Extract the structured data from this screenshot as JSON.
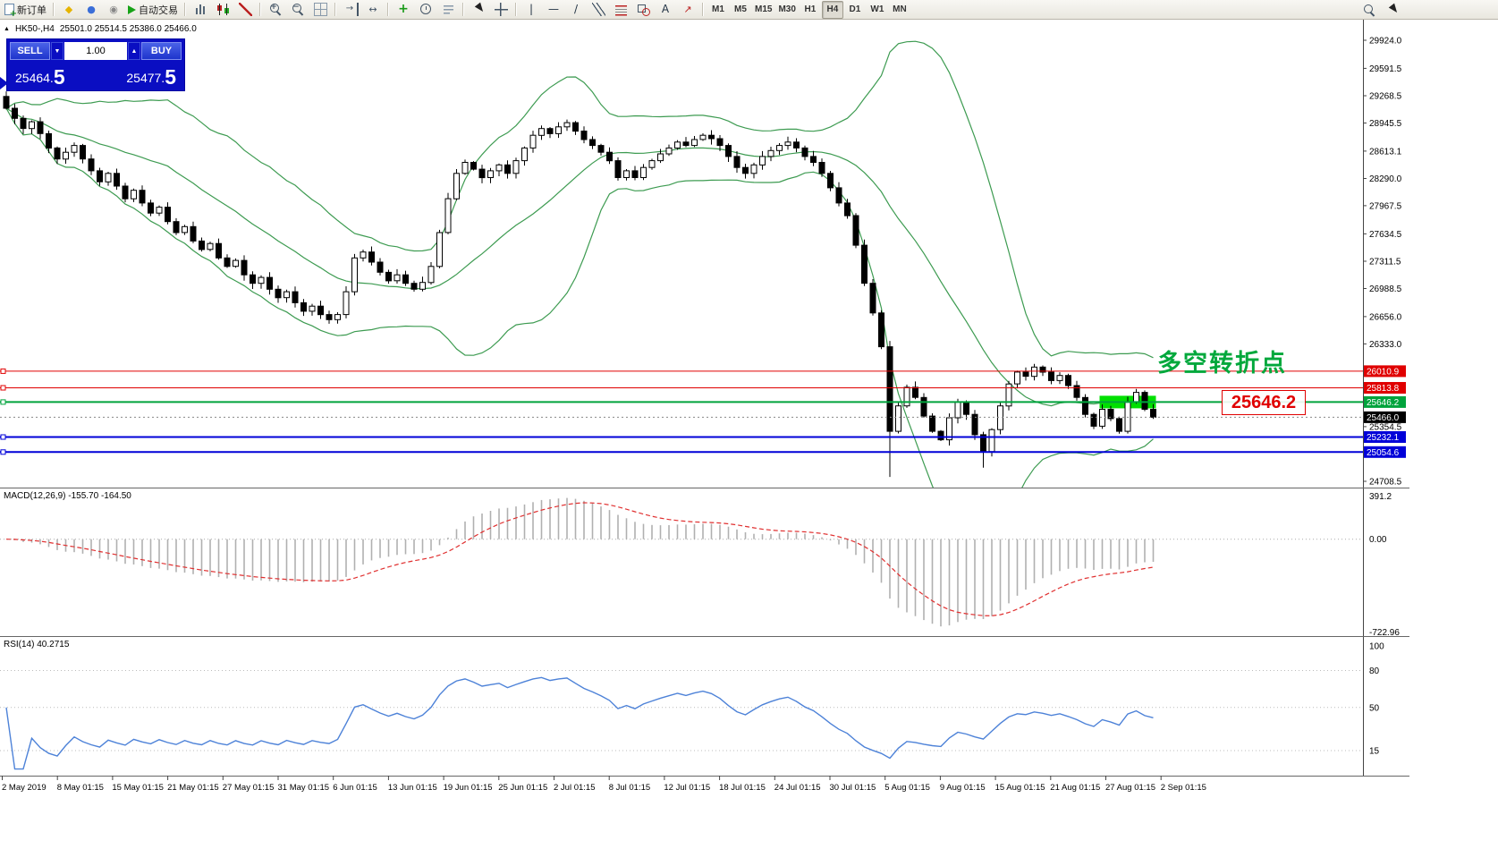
{
  "icons": {
    "pane_collapse": "▲",
    "spinner_down": "▼",
    "spinner_up": "▲"
  },
  "toolbar": {
    "groups": [
      {
        "items": [
          {
            "name": "new-order-button",
            "icon": "doc",
            "label": "新订单"
          }
        ]
      },
      {
        "items": [
          {
            "name": "mql5-button",
            "icon": "glyph",
            "glyph": "◆",
            "color": "#e6b400"
          },
          {
            "name": "profile-button",
            "icon": "glyph",
            "glyph": "●",
            "color": "#3a6ed8"
          },
          {
            "name": "community-button",
            "icon": "glyph",
            "glyph": "◉",
            "color": "#888888"
          },
          {
            "name": "algo-trading-button",
            "icon": "play",
            "label": "自动交易"
          }
        ]
      },
      {
        "items": [
          {
            "name": "bar-chart-button",
            "icon": "bars"
          },
          {
            "name": "candlestick-chart-button",
            "icon": "candles"
          },
          {
            "name": "line-chart-button",
            "icon": "linechart"
          }
        ]
      },
      {
        "items": [
          {
            "name": "zoom-in-button",
            "icon": "zoomin",
            "glyph": "+"
          },
          {
            "name": "zoom-out-button",
            "icon": "zoomout",
            "glyph": "−"
          },
          {
            "name": "tile-windows-button",
            "icon": "grid"
          }
        ]
      },
      {
        "items": [
          {
            "name": "auto-scroll-button",
            "icon": "as",
            "glyph": "→"
          },
          {
            "name": "chart-shift-button",
            "icon": "shift",
            "glyph": "↔"
          }
        ]
      },
      {
        "items": [
          {
            "name": "indicators-button",
            "icon": "indplus",
            "glyph": "+"
          },
          {
            "name": "periods-button",
            "icon": "clock"
          },
          {
            "name": "templates-button",
            "icon": "tpl"
          }
        ]
      },
      {
        "items": [
          {
            "name": "cursor-button",
            "icon": "cursor"
          },
          {
            "name": "crosshair-button",
            "icon": "crosshair"
          }
        ]
      },
      {
        "items": [
          {
            "name": "vertical-line-button",
            "icon": "vl",
            "glyph": "|"
          },
          {
            "name": "horizontal-line-button",
            "icon": "hl",
            "glyph": "—"
          },
          {
            "name": "trendline-button",
            "icon": "tl",
            "glyph": "/"
          },
          {
            "name": "equidistant-channel-button",
            "icon": "channel"
          },
          {
            "name": "fibonacci-button",
            "icon": "fibo"
          },
          {
            "name": "shapes-button",
            "icon": "shapes"
          },
          {
            "name": "text-label-button",
            "icon": "text",
            "glyph": "A"
          },
          {
            "name": "arrows-button",
            "icon": "arrowtool",
            "glyph": "↗"
          }
        ]
      },
      {
        "items": [
          {
            "name": "timeframe-m1-button",
            "label": "M1",
            "tf": true
          },
          {
            "name": "timeframe-m5-button",
            "label": "M5",
            "tf": true
          },
          {
            "name": "timeframe-m15-button",
            "label": "M15",
            "tf": true
          },
          {
            "name": "timeframe-m30-button",
            "label": "M30",
            "tf": true
          },
          {
            "name": "timeframe-h1-button",
            "label": "H1",
            "tf": true
          },
          {
            "name": "timeframe-h4-button",
            "label": "H4",
            "tf": true,
            "active": true
          },
          {
            "name": "timeframe-d1-button",
            "label": "D1",
            "tf": true
          },
          {
            "name": "timeframe-w1-button",
            "label": "W1",
            "tf": true
          },
          {
            "name": "timeframe-mn-button",
            "label": "MN",
            "tf": true
          }
        ]
      }
    ],
    "right_items": [
      {
        "name": "search-symbol-button",
        "icon": "magnifier"
      },
      {
        "name": "pointer-dropdown-button",
        "icon": "cursor"
      }
    ]
  },
  "chart_header": {
    "symbol_timeframe": "HK50-,H4",
    "ohlc": "25501.0 25514.5 25386.0 25466.0"
  },
  "order_panel": {
    "sell_label": "SELL",
    "buy_label": "BUY",
    "volume": "1.00",
    "sell_price_int": "25464.",
    "sell_price_frac": "5",
    "buy_price_int": "25477.",
    "buy_price_frac": "5"
  },
  "annotations": {
    "turning_point": "多空转折点",
    "price_callout": "25646.2"
  },
  "colors": {
    "accent_red": "#e00000",
    "accent_blue": "#0000d8",
    "accent_green": "#00a33c",
    "highlight_green": "#00e000",
    "band_green": "#3d9b51",
    "rsi_blue": "#4d82d8",
    "macd_signal_red": "#e03030",
    "macd_hist_gray": "#b0b0b0",
    "panel_blue": "#0a0ec2",
    "current_price_bg": "#000000"
  },
  "chart_data": {
    "type": "candlestick",
    "symbol": "HK50",
    "timeframe": "H4",
    "first_open": 29260,
    "closes": [
      29120,
      29000,
      28880,
      28960,
      28820,
      28650,
      28520,
      28600,
      28680,
      28520,
      28380,
      28250,
      28350,
      28200,
      28050,
      28150,
      28000,
      27880,
      27950,
      27780,
      27650,
      27720,
      27550,
      27450,
      27520,
      27350,
      27250,
      27320,
      27150,
      27050,
      27120,
      26980,
      26880,
      26950,
      26820,
      26720,
      26780,
      26680,
      26620,
      26680,
      26950,
      27350,
      27420,
      27300,
      27180,
      27080,
      27150,
      27050,
      26980,
      27060,
      27250,
      27650,
      28050,
      28350,
      28480,
      28400,
      28300,
      28380,
      28450,
      28350,
      28500,
      28650,
      28800,
      28880,
      28820,
      28900,
      28950,
      28850,
      28750,
      28680,
      28600,
      28500,
      28300,
      28380,
      28300,
      28420,
      28500,
      28580,
      28650,
      28720,
      28680,
      28750,
      28800,
      28760,
      28680,
      28550,
      28420,
      28350,
      28450,
      28550,
      28620,
      28680,
      28720,
      28650,
      28550,
      28480,
      28350,
      28180,
      28000,
      27850,
      27500,
      27050,
      26700,
      26300,
      25300,
      25600,
      25820,
      25700,
      25480,
      25300,
      25200,
      25460,
      25650,
      25500,
      25260,
      25060,
      25320,
      25600,
      25860,
      26000,
      25950,
      26060,
      26000,
      25900,
      25960,
      25840,
      25700,
      25500,
      25360,
      25560,
      25450,
      25300,
      25650,
      25760,
      25560,
      25466
    ],
    "wick_overrides": {
      "0": {
        "high": 29320
      },
      "104": {
        "low": 24760
      },
      "115": {
        "low": 24870
      }
    },
    "current_price": {
      "value": 25466.0,
      "label": "25466.0"
    },
    "levels": [
      {
        "price": 26010.9,
        "label": "26010.9",
        "color": "#e00000",
        "width": 1
      },
      {
        "price": 25813.8,
        "label": "25813.8",
        "color": "#e00000",
        "width": 1
      },
      {
        "price": 25646.2,
        "label": "25646.2",
        "color": "#00a33c",
        "width": 2
      },
      {
        "price": 25232.1,
        "label": "25232.1",
        "color": "#0000d8",
        "width": 2
      },
      {
        "price": 25054.6,
        "label": "25054.6",
        "color": "#0000d8",
        "width": 2
      }
    ],
    "highlight_rect": {
      "price": 25646.2,
      "from_index": 129,
      "to_index": 135
    },
    "price_axis": {
      "ticks": [
        29924.0,
        29591.5,
        29268.5,
        28945.5,
        28613.1,
        28290.0,
        27967.5,
        27634.5,
        27311.5,
        26988.5,
        26656.0,
        26333.0,
        25354.5,
        24708.5
      ]
    },
    "indicators": {
      "bollinger": {
        "period": 20,
        "deviation": 2
      },
      "macd": {
        "label": "MACD(12,26,9) -155.70 -164.50",
        "params": [
          12,
          26,
          9
        ],
        "axis_top": "391.2",
        "axis_zero": "0.00",
        "axis_bottom": "-722.96"
      },
      "rsi": {
        "label": "RSI(14) 40.2715",
        "period": 14,
        "levels": [
          80,
          50,
          15
        ],
        "axis_labels": [
          {
            "v": 100,
            "t": "100"
          },
          {
            "v": 80,
            "t": "80"
          },
          {
            "v": 50,
            "t": "50"
          },
          {
            "v": 15,
            "t": "15"
          }
        ]
      }
    },
    "time_labels": [
      "2 May 2019",
      "8 May 01:15",
      "15 May 01:15",
      "21 May 01:15",
      "27 May 01:15",
      "31 May 01:15",
      "6 Jun 01:15",
      "13 Jun 01:15",
      "19 Jun 01:15",
      "25 Jun 01:15",
      "2 Jul 01:15",
      "8 Jul 01:15",
      "12 Jul 01:15",
      "18 Jul 01:15",
      "24 Jul 01:15",
      "30 Jul 01:15",
      "5 Aug 01:15",
      "9 Aug 01:15",
      "15 Aug 01:15",
      "21 Aug 01:15",
      "27 Aug 01:15",
      "2 Sep 01:15"
    ]
  }
}
